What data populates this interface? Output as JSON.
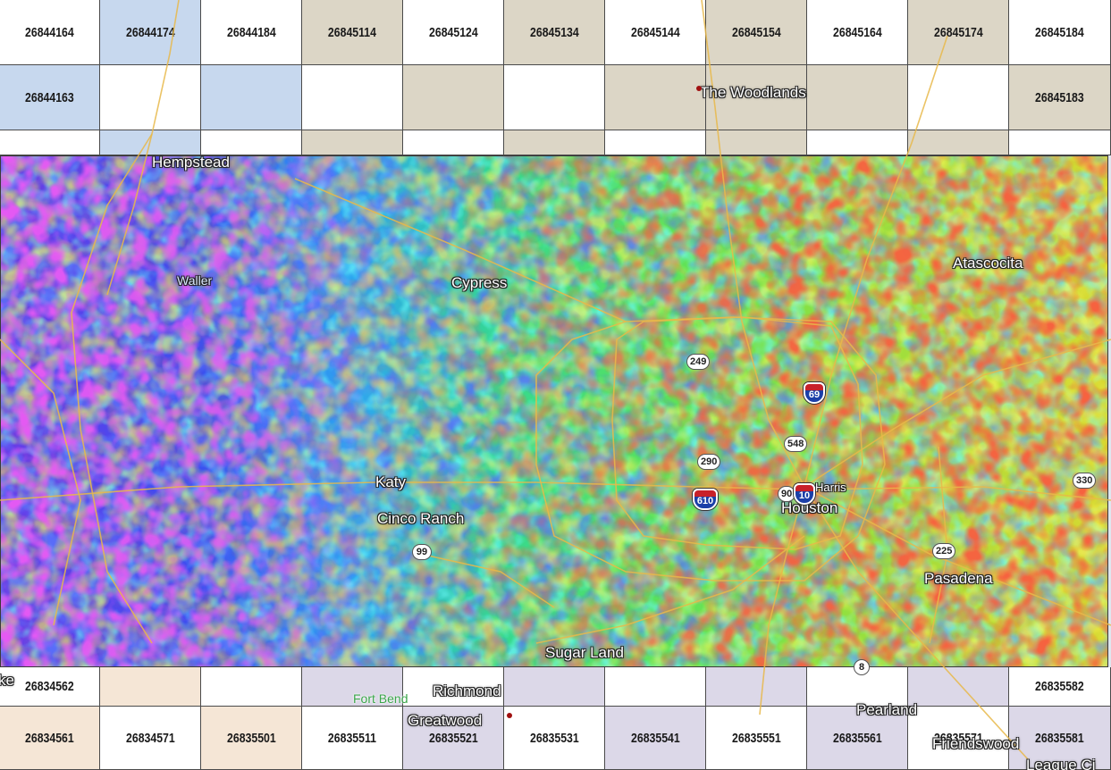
{
  "grid_rows": [
    {
      "cells": [
        {
          "label": "26844164",
          "color": "#ffffff"
        },
        {
          "label": "26844174",
          "color": "#c7d8ee"
        },
        {
          "label": "26844184",
          "color": "#ffffff"
        },
        {
          "label": "26845114",
          "color": "#dcd6c6"
        },
        {
          "label": "26845124",
          "color": "#ffffff"
        },
        {
          "label": "26845134",
          "color": "#dcd6c6"
        },
        {
          "label": "26845144",
          "color": "#ffffff"
        },
        {
          "label": "26845154",
          "color": "#dcd6c6"
        },
        {
          "label": "26845164",
          "color": "#ffffff"
        },
        {
          "label": "26845174",
          "color": "#dcd6c6"
        },
        {
          "label": "26845184",
          "color": "#ffffff"
        }
      ]
    },
    {
      "cells": [
        {
          "label": "26844163",
          "color": "#c7d8ee"
        },
        {
          "label": "",
          "color": "#ffffff"
        },
        {
          "label": "",
          "color": "#c7d8ee"
        },
        {
          "label": "",
          "color": "#ffffff"
        },
        {
          "label": "",
          "color": "#dcd6c6"
        },
        {
          "label": "",
          "color": "#ffffff"
        },
        {
          "label": "",
          "color": "#dcd6c6"
        },
        {
          "label": "",
          "color": "#dcd6c6"
        },
        {
          "label": "",
          "color": "#dcd6c6"
        },
        {
          "label": "",
          "color": "#ffffff"
        },
        {
          "label": "26845183",
          "color": "#dcd6c6"
        }
      ]
    },
    {
      "cells": [
        {
          "label": "",
          "color": "#ffffff"
        },
        {
          "label": "",
          "color": "#c7d8ee"
        },
        {
          "label": "",
          "color": "#ffffff"
        },
        {
          "label": "",
          "color": "#dcd6c6"
        },
        {
          "label": "",
          "color": "#ffffff"
        },
        {
          "label": "",
          "color": "#dcd6c6"
        },
        {
          "label": "",
          "color": "#ffffff"
        },
        {
          "label": "",
          "color": "#dcd6c6"
        },
        {
          "label": "",
          "color": "#ffffff"
        },
        {
          "label": "",
          "color": "#dcd6c6"
        },
        {
          "label": "",
          "color": "#ffffff"
        }
      ]
    },
    {
      "cells": [
        {
          "label": "26834562",
          "color": "#ffffff"
        },
        {
          "label": "",
          "color": "#f5e6d6"
        },
        {
          "label": "",
          "color": "#ffffff"
        },
        {
          "label": "",
          "color": "#dcd8e8"
        },
        {
          "label": "",
          "color": "#ffffff"
        },
        {
          "label": "",
          "color": "#dcd8e8"
        },
        {
          "label": "",
          "color": "#ffffff"
        },
        {
          "label": "",
          "color": "#dcd8e8"
        },
        {
          "label": "",
          "color": "#ffffff"
        },
        {
          "label": "",
          "color": "#dcd8e8"
        },
        {
          "label": "26835582",
          "color": "#ffffff"
        }
      ]
    },
    {
      "cells": [
        {
          "label": "26834561",
          "color": "#f5e6d6"
        },
        {
          "label": "26834571",
          "color": "#ffffff"
        },
        {
          "label": "26835501",
          "color": "#f5e6d6"
        },
        {
          "label": "26835511",
          "color": "#ffffff"
        },
        {
          "label": "26835521",
          "color": "#dcd8e8"
        },
        {
          "label": "26835531",
          "color": "#ffffff"
        },
        {
          "label": "26835541",
          "color": "#dcd8e8"
        },
        {
          "label": "26835551",
          "color": "#ffffff"
        },
        {
          "label": "26835561",
          "color": "#dcd8e8"
        },
        {
          "label": "26835571",
          "color": "#ffffff"
        },
        {
          "label": "26835581",
          "color": "#dcd8e8"
        }
      ]
    }
  ],
  "places": {
    "hempstead": "Hempstead",
    "waller": "Waller",
    "cypress": "Cypress",
    "atascocita": "Atascocita",
    "katy": "Katy",
    "cinco_ranch": "Cinco Ranch",
    "houston": "Houston",
    "harris": "Harris",
    "pasadena": "Pasadena",
    "sugar_land": "Sugar Land",
    "richmond": "Richmond",
    "fort_bend": "Fort Bend",
    "greatwood": "Greatwood",
    "pearland": "Pearland",
    "friendswood": "Friendswood",
    "the_woodlands": "The Woodlands",
    "league_city": "League Ci",
    "ke_partial": "ke"
  },
  "shields": {
    "us249": "249",
    "us290": "290",
    "i69": "69",
    "sh548": "548",
    "i610": "610",
    "us90": "90",
    "i10": "10",
    "sh330": "330",
    "sh225": "225",
    "sh99": "99",
    "sh8": "8"
  },
  "colors": {
    "road": "#e8b84a",
    "raster_low": "#c020e0",
    "raster_mid": "#30e070",
    "raster_high": "#e02010"
  }
}
